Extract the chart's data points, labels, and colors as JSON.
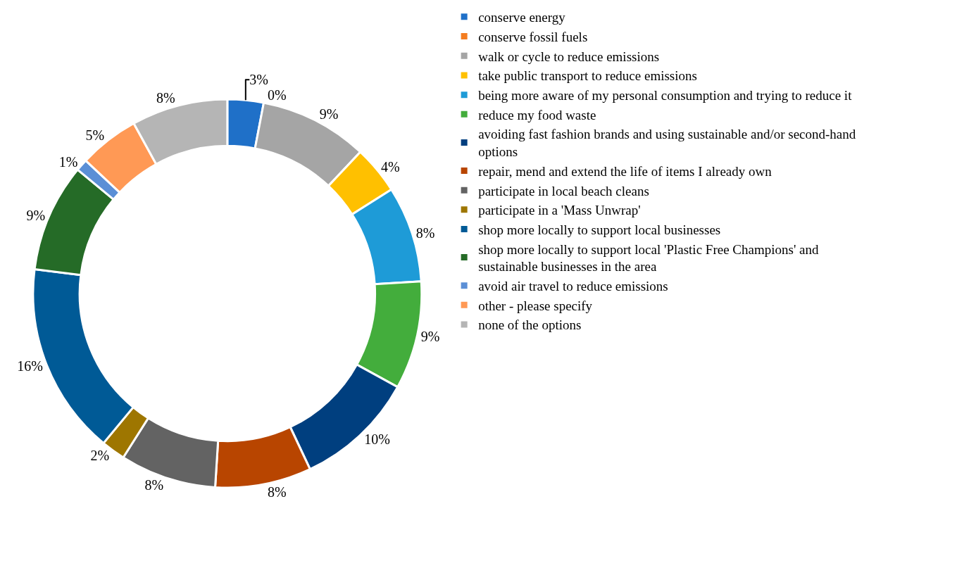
{
  "chart_data": {
    "type": "donut",
    "categories": [
      "conserve energy",
      "conserve fossil fuels",
      "walk or cycle to reduce emissions",
      "take public transport to reduce emissions",
      "being more aware of my personal consumption and trying to reduce it",
      "reduce my food waste",
      "avoiding fast fashion brands and using sustainable and/or second-hand options",
      "repair, mend and extend the life of items I already own",
      "participate in local beach cleans",
      "participate in a 'Mass Unwrap'",
      "shop more locally to support local businesses",
      "shop more locally to support local 'Plastic Free Champions' and sustainable businesses in the area",
      "avoid air travel to reduce emissions",
      "other - please specify",
      "none of the options"
    ],
    "values": [
      3,
      0,
      9,
      4,
      8,
      9,
      10,
      8,
      8,
      2,
      16,
      9,
      1,
      5,
      8
    ],
    "value_labels": [
      "3%",
      "0%",
      "9%",
      "4%",
      "8%",
      "9%",
      "10%",
      "8%",
      "8%",
      "2%",
      "16%",
      "9%",
      "1%",
      "5%",
      "8%"
    ],
    "colors": [
      "#1f70c8",
      "#f47d20",
      "#a5a5a5",
      "#ffc000",
      "#1e9bd7",
      "#43ad3c",
      "#003f7f",
      "#b84500",
      "#636363",
      "#9e7600",
      "#005a96",
      "#256b27",
      "#5b8fd6",
      "#ff9955",
      "#b5b5b5"
    ],
    "legend": "right"
  }
}
